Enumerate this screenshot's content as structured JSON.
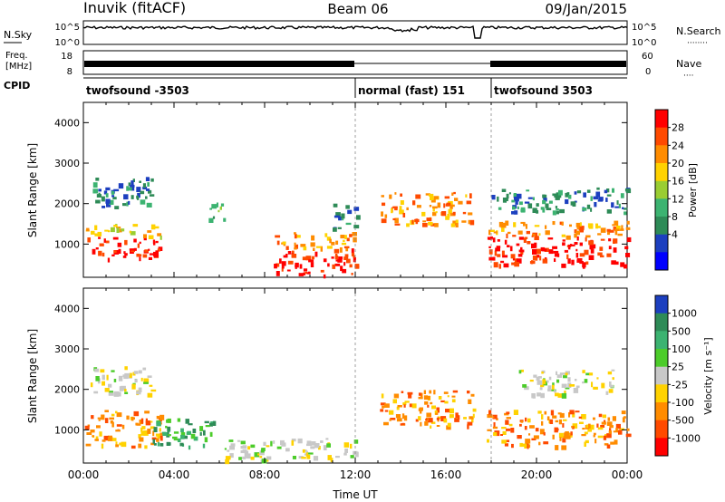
{
  "header": {
    "station": "Inuvik (fitACF)",
    "beam": "Beam 06",
    "date": "09/Jan/2015"
  },
  "top_panels": {
    "nsky_label": "N.Sky",
    "nsearch_label": "N.Search",
    "nsearch_dots": "········",
    "noise_ticks": [
      "10^5",
      "10^0"
    ],
    "freq_label_1": "Freq.",
    "freq_label_2": "[MHz]",
    "freq_ticks": [
      "18",
      "8"
    ],
    "nave_label": "Nave",
    "nave_dots": "····",
    "nave_ticks": [
      "60",
      "0"
    ],
    "cpid_label": "CPID",
    "cpid_segments": [
      {
        "label": "twofsound -3503",
        "start_hour": 0,
        "end_hour": 12
      },
      {
        "label": "normal (fast) 151",
        "start_hour": 12,
        "end_hour": 18
      },
      {
        "label": "twofsound 3503",
        "start_hour": 18,
        "end_hour": 24
      }
    ]
  },
  "chart_data": [
    {
      "type": "heatmap",
      "name": "power",
      "ylabel": "Slant Range [km]",
      "y_ticks": [
        1000,
        2000,
        3000,
        4000
      ],
      "ylim": [
        180,
        4500
      ],
      "xlim": [
        0,
        24
      ],
      "colorbar_label": "Power [dB]",
      "colorbar_ticks": [
        "28",
        "24",
        "20",
        "16",
        "12",
        "8",
        "4"
      ],
      "colorbar_colors": [
        "#ff0000",
        "#ff4a00",
        "#ff8c00",
        "#ffd200",
        "#9acd32",
        "#3cb371",
        "#2e8b57",
        "#1c3fbf",
        "#0000ff"
      ],
      "bands": [
        {
          "x0": 0.05,
          "x1": 3.4,
          "y0": 650,
          "y1": 1200,
          "level": 0
        },
        {
          "x0": 0.05,
          "x1": 3.4,
          "y0": 1200,
          "y1": 1500,
          "level": 3
        },
        {
          "x0": 0.4,
          "x1": 3.0,
          "y0": 1900,
          "y1": 2700,
          "level": 6
        },
        {
          "x0": 5.5,
          "x1": 6.2,
          "y0": 1600,
          "y1": 2100,
          "level": 5
        },
        {
          "x0": 8.4,
          "x1": 12.0,
          "y0": 250,
          "y1": 900,
          "level": 0
        },
        {
          "x0": 8.4,
          "x1": 12.0,
          "y0": 900,
          "y1": 1300,
          "level": 2
        },
        {
          "x0": 11.0,
          "x1": 12.1,
          "y0": 1400,
          "y1": 2000,
          "level": 6
        },
        {
          "x0": 13.1,
          "x1": 17.1,
          "y0": 1500,
          "y1": 2300,
          "level": 2
        },
        {
          "x0": 17.8,
          "x1": 24.0,
          "y0": 500,
          "y1": 1200,
          "level": 0
        },
        {
          "x0": 17.8,
          "x1": 24.0,
          "y0": 1200,
          "y1": 1600,
          "level": 2
        },
        {
          "x0": 18.0,
          "x1": 24.0,
          "y0": 1800,
          "y1": 2400,
          "level": 6
        }
      ]
    },
    {
      "type": "heatmap",
      "name": "velocity",
      "ylabel": "Slant Range [km]",
      "y_ticks": [
        1000,
        2000,
        3000,
        4000
      ],
      "ylim": [
        180,
        4500
      ],
      "xlim": [
        0,
        24
      ],
      "x_ticks": [
        "00:00",
        "04:00",
        "08:00",
        "12:00",
        "16:00",
        "20:00",
        "00:00"
      ],
      "xlabel": "Time UT",
      "colorbar_label": "Velocity [m s⁻¹]",
      "colorbar_ticks": [
        "1000",
        "500",
        "100",
        "25",
        "-25",
        "-100",
        "-500",
        "-1000"
      ],
      "colorbar_colors": [
        "#1c3fbf",
        "#2e8b57",
        "#3cb371",
        "#4ccc2a",
        "#c8c8c8",
        "#ffd200",
        "#ff8c00",
        "#ff4a00",
        "#ff0000"
      ],
      "bands": [
        {
          "x0": 0.05,
          "x1": 3.4,
          "y0": 600,
          "y1": 1500,
          "level": 6
        },
        {
          "x0": 0.3,
          "x1": 3.0,
          "y0": 1900,
          "y1": 2600,
          "level": 4
        },
        {
          "x0": 3.0,
          "x1": 5.8,
          "y0": 600,
          "y1": 1300,
          "level": 2
        },
        {
          "x0": 6.2,
          "x1": 12.0,
          "y0": 250,
          "y1": 800,
          "level": 4
        },
        {
          "x0": 13.0,
          "x1": 17.2,
          "y0": 1100,
          "y1": 2000,
          "level": 6
        },
        {
          "x0": 17.8,
          "x1": 24.0,
          "y0": 600,
          "y1": 1500,
          "level": 6
        },
        {
          "x0": 19.2,
          "x1": 23.5,
          "y0": 1900,
          "y1": 2500,
          "level": 4
        }
      ]
    }
  ]
}
